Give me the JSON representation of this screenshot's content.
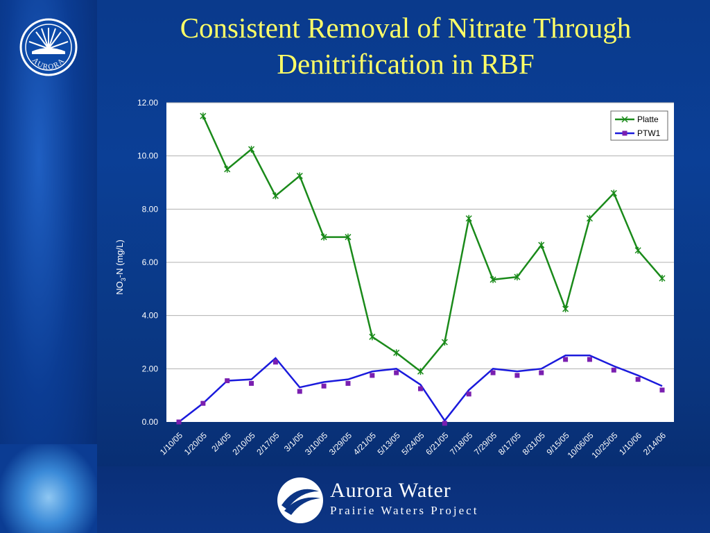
{
  "slide": {
    "title": "Consistent Removal of Nitrate Through Denitrification in RBF"
  },
  "footer": {
    "brand": "Aurora Water",
    "subtitle": "Prairie Waters Project"
  },
  "emblem": {
    "text": "AURORA",
    "icon": "aurora-sun-emblem"
  },
  "colors": {
    "title": "#ffff66",
    "platte": "#1a8a1a",
    "ptw1": "#1a1adc",
    "ptw1_marker": "#7a1fb0",
    "plot_bg": "#ffffff"
  },
  "chart_data": {
    "type": "line",
    "xlabel": "",
    "ylabel": "NO3-N (mg/L)",
    "ylabel_parts": [
      "NO",
      "3",
      "-N (mg/L)"
    ],
    "ylim": [
      0,
      12
    ],
    "yticks": [
      "0.00",
      "2.00",
      "4.00",
      "6.00",
      "8.00",
      "10.00",
      "12.00"
    ],
    "ytick_values": [
      0,
      2,
      4,
      6,
      8,
      10,
      12
    ],
    "grid": "horizontal",
    "legend_position": "top-right",
    "categories": [
      "1/10/05",
      "1/20/05",
      "2/4/05",
      "2/10/05",
      "2/17/05",
      "3/1/05",
      "3/10/05",
      "3/29/05",
      "4/21/05",
      "5/13/05",
      "5/24/05",
      "6/21/05",
      "7/18/05",
      "7/29/05",
      "8/17/05",
      "8/31/05",
      "9/15/05",
      "10/06/05",
      "10/25/05",
      "1/10/06",
      "2/14/06"
    ],
    "series": [
      {
        "name": "Platte",
        "marker": "asterisk",
        "values": [
          null,
          11.5,
          9.5,
          10.25,
          8.5,
          9.25,
          6.95,
          6.95,
          3.2,
          2.6,
          1.9,
          3.0,
          7.65,
          5.35,
          5.45,
          6.65,
          4.25,
          7.65,
          8.6,
          6.45,
          5.4
        ]
      },
      {
        "name": "PTW1",
        "marker": "square",
        "line_values": [
          0.0,
          0.7,
          1.55,
          1.6,
          2.4,
          1.3,
          1.5,
          1.6,
          1.9,
          2.0,
          1.4,
          0.05,
          1.2,
          2.0,
          1.9,
          2.0,
          2.5,
          2.5,
          2.1,
          1.75,
          1.35
        ],
        "point_values": [
          0.0,
          0.7,
          1.55,
          1.45,
          2.25,
          1.15,
          1.35,
          1.45,
          1.75,
          1.85,
          1.25,
          -0.05,
          1.05,
          1.85,
          1.75,
          1.85,
          2.35,
          2.35,
          1.95,
          1.6,
          1.2
        ]
      }
    ]
  }
}
